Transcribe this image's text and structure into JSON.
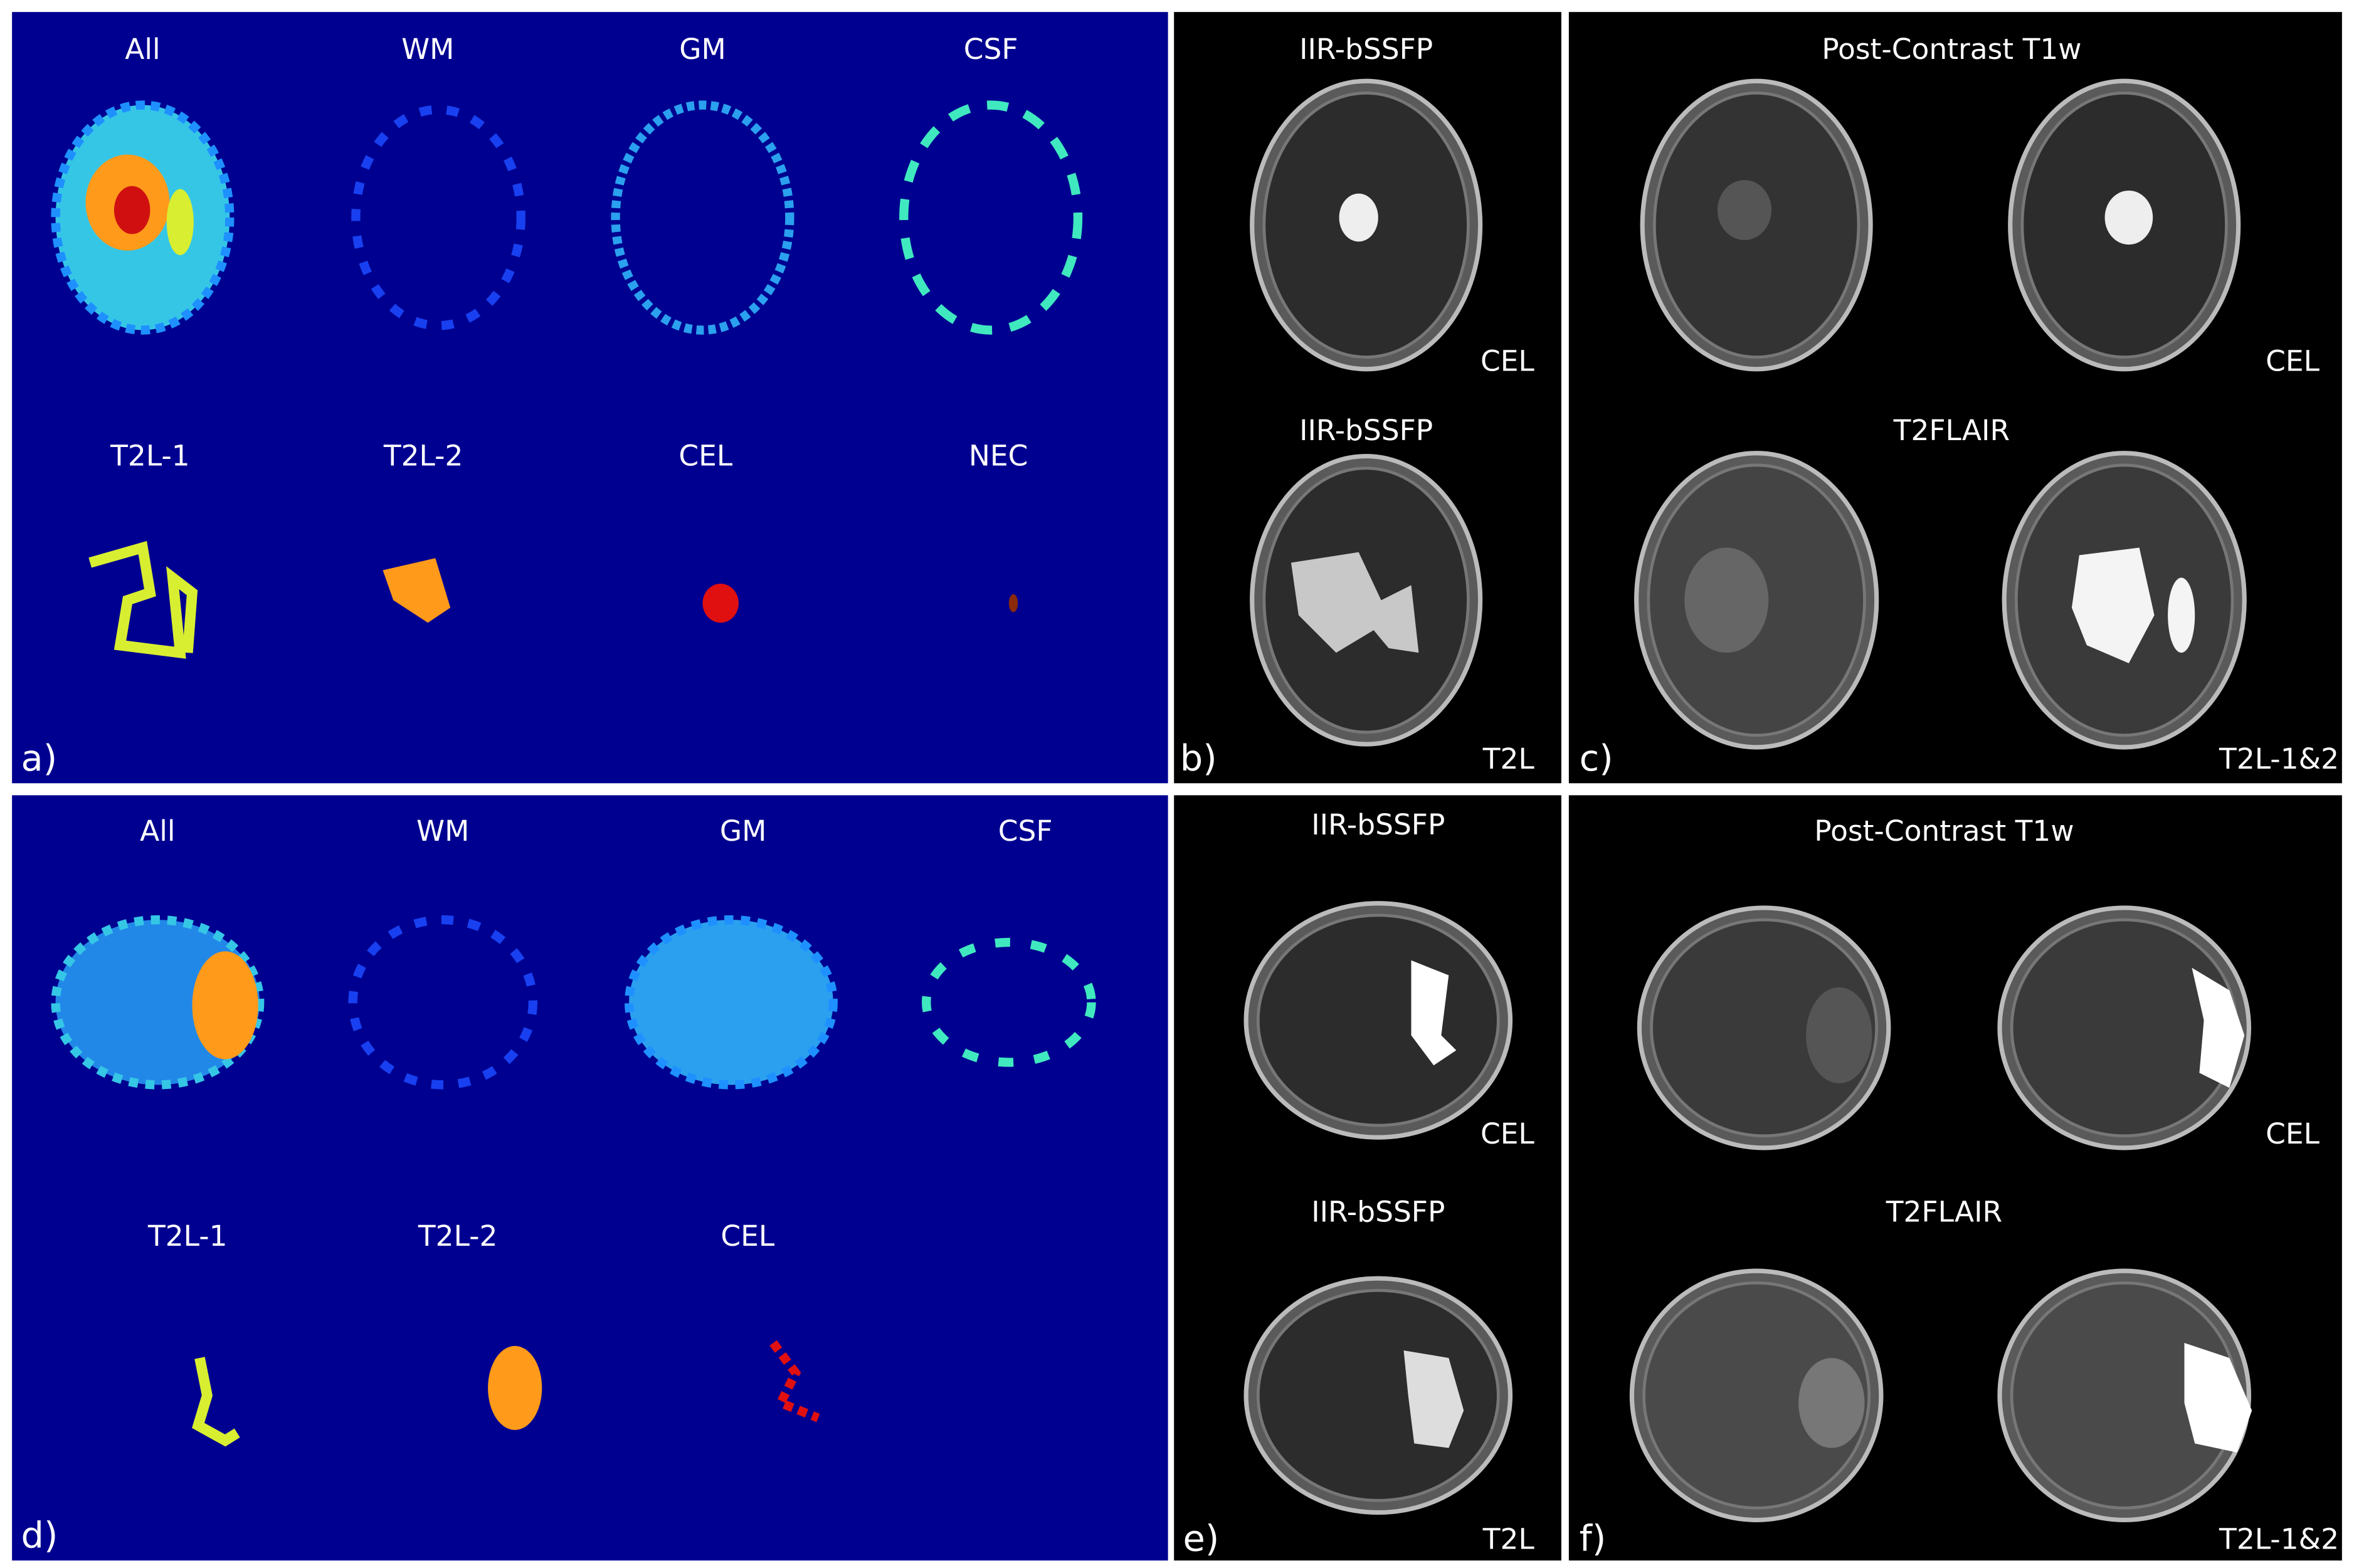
{
  "panel_a": {
    "letter": "a)",
    "labels": [
      "All",
      "WM",
      "GM",
      "CSF",
      "T2L-1",
      "T2L-2",
      "CEL",
      "NEC"
    ]
  },
  "panel_b": {
    "letter": "b)",
    "top_title": "IIR-bSSFP",
    "top_tag": "CEL",
    "bottom_title": "IIR-bSSFP",
    "bottom_tag": "T2L"
  },
  "panel_c": {
    "letter": "c)",
    "top_title": "Post-Contrast T1w",
    "top_tag": "CEL",
    "bottom_title": "T2FLAIR",
    "bottom_tag": "T2L-1&2"
  },
  "panel_d": {
    "letter": "d)",
    "labels": [
      "All",
      "WM",
      "GM",
      "CSF",
      "T2L-1",
      "T2L-2",
      "CEL"
    ]
  },
  "panel_e": {
    "letter": "e)",
    "top_title": "IIR-bSSFP",
    "top_tag": "CEL",
    "bottom_title": "IIR-bSSFP",
    "bottom_tag": "T2L"
  },
  "panel_f": {
    "letter": "f)",
    "top_title": "Post-Contrast T1w",
    "top_tag": "CEL",
    "bottom_title": "T2FLAIR",
    "bottom_tag": "T2L-1&2"
  }
}
